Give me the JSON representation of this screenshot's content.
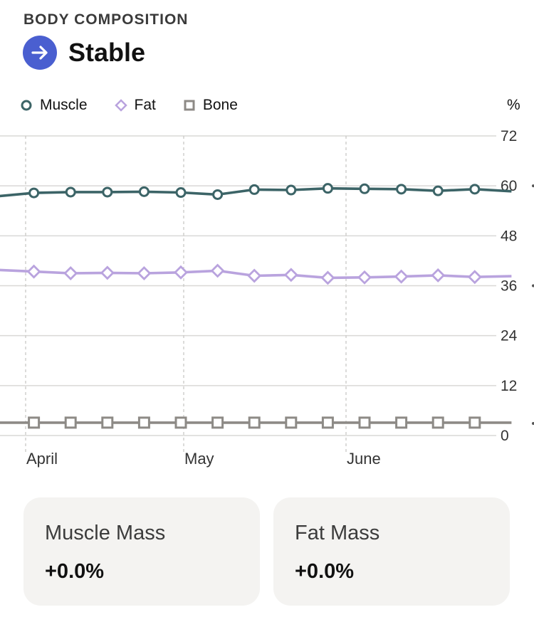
{
  "header": {
    "section_title": "BODY COMPOSITION",
    "status_label": "Stable",
    "status_icon": "arrow-right-icon",
    "status_color": "#4a5fd0"
  },
  "legend": {
    "items": [
      {
        "label": "Muscle",
        "marker": "circle",
        "color": "#3c6467"
      },
      {
        "label": "Fat",
        "marker": "diamond",
        "color": "#b9a3de"
      },
      {
        "label": "Bone",
        "marker": "square",
        "color": "#8d8a86"
      }
    ],
    "unit": "%"
  },
  "chart_data": {
    "type": "line",
    "x_tick_labels": [
      "April",
      "May",
      "June"
    ],
    "y_ticks": [
      0,
      12,
      24,
      36,
      48,
      60,
      72
    ],
    "ylim": [
      0,
      72
    ],
    "grid": true,
    "y_axis_position": "right",
    "series": [
      {
        "name": "Muscle",
        "color": "#3c6467",
        "marker": "circle",
        "values": [
          57.5,
          58.3,
          58.5,
          58.5,
          58.6,
          58.4,
          57.9,
          59.1,
          59.0,
          59.4,
          59.3,
          59.2,
          58.8,
          59.2,
          58.7
        ]
      },
      {
        "name": "Fat",
        "color": "#b9a3de",
        "marker": "diamond",
        "values": [
          39.8,
          39.4,
          39.0,
          39.1,
          39.0,
          39.2,
          39.6,
          38.4,
          38.6,
          37.9,
          38.0,
          38.2,
          38.5,
          38.1,
          38.3
        ]
      },
      {
        "name": "Bone",
        "color": "#8d8a86",
        "marker": "square",
        "values": [
          3.1,
          3.1,
          3.1,
          3.1,
          3.1,
          3.1,
          3.1,
          3.1,
          3.1,
          3.1,
          3.1,
          3.1,
          3.1,
          3.1,
          3.1
        ]
      }
    ]
  },
  "cards": [
    {
      "label": "Muscle Mass",
      "value": "+0.0%"
    },
    {
      "label": "Fat Mass",
      "value": "+0.0%"
    }
  ]
}
